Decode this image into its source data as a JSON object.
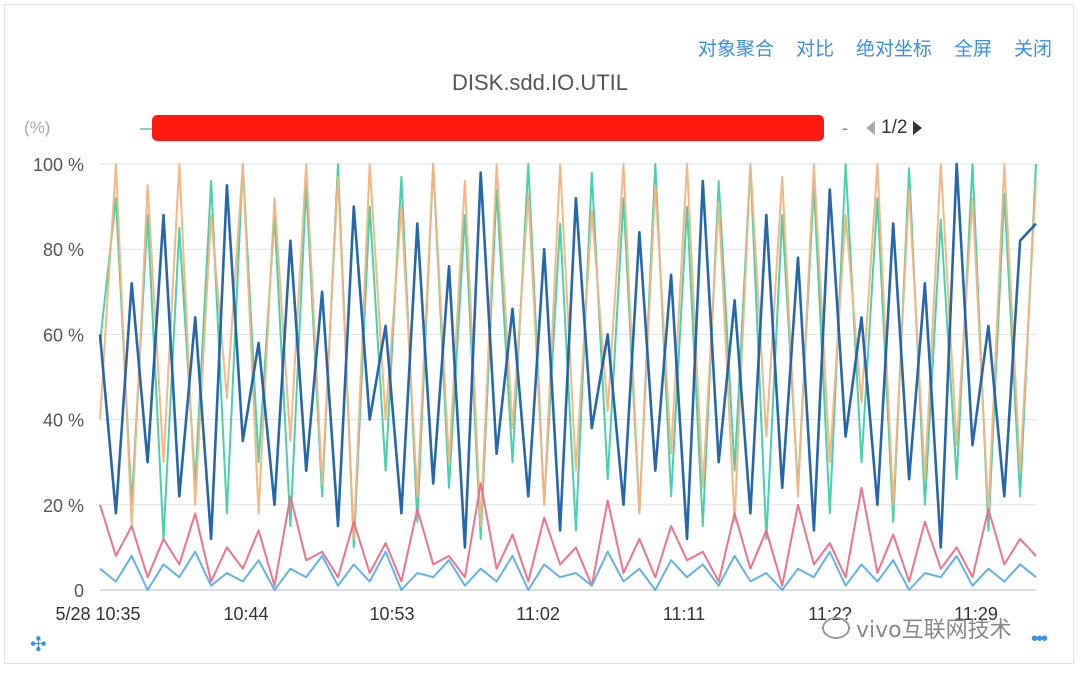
{
  "toolbar": {
    "aggregate": "对象聚合",
    "compare": "对比",
    "absolute_axis": "绝对坐标",
    "fullscreen": "全屏",
    "close": "关闭"
  },
  "legend": {
    "dash": "-",
    "page": "1/2"
  },
  "watermark": "vivo互联网技术",
  "colors": {
    "accent": "#3a8ee6",
    "series": [
      "#3ecfa6",
      "#f8b27e",
      "#1a5fa8",
      "#f06a84",
      "#5aaeee"
    ],
    "redaction": "#ff1a10"
  },
  "icons": {
    "move": "move-icon",
    "more": "more-icon"
  },
  "chart_data": {
    "type": "line",
    "title": "DISK.sdd.IO.UTIL",
    "ylabel": "(%)",
    "ylim": [
      0,
      100
    ],
    "y_ticks": [
      "0",
      "20 %",
      "40 %",
      "60 %",
      "80 %",
      "100 %"
    ],
    "x_ticks": [
      "5/28 10:35",
      "10:44",
      "10:53",
      "11:02",
      "11:11",
      "11:2?",
      "11:29"
    ],
    "grid": true,
    "series": [
      {
        "color": "#3ecfa6",
        "values": [
          58,
          92,
          20,
          88,
          12,
          85,
          25,
          96,
          18,
          100,
          30,
          88,
          15,
          95,
          22,
          100,
          10,
          90,
          28,
          97,
          16,
          100,
          24,
          88,
          12,
          94,
          30,
          100,
          20,
          86,
          14,
          98,
          26,
          92,
          18,
          100,
          22,
          90,
          15,
          96,
          28,
          100,
          12,
          88,
          24,
          95,
          18,
          100,
          30,
          92,
          16,
          99,
          20,
          87,
          26,
          100,
          14,
          93,
          22,
          100
        ]
      },
      {
        "color": "#f8b27e",
        "values": [
          40,
          100,
          15,
          95,
          30,
          100,
          20,
          88,
          45,
          100,
          18,
          92,
          35,
          100,
          25,
          97,
          12,
          100,
          40,
          90,
          22,
          100,
          30,
          96,
          15,
          100,
          38,
          93,
          20,
          100,
          28,
          89,
          42,
          100,
          18,
          95,
          32,
          100,
          24,
          91,
          16,
          100,
          36,
          97,
          22,
          100,
          30,
          88,
          44,
          100,
          20,
          94,
          26,
          100,
          34,
          92,
          18,
          100,
          28,
          96
        ]
      },
      {
        "color": "#1a5fa8",
        "values": [
          60,
          18,
          72,
          30,
          88,
          22,
          64,
          12,
          95,
          35,
          58,
          20,
          82,
          28,
          70,
          15,
          90,
          40,
          62,
          18,
          86,
          25,
          76,
          10,
          98,
          32,
          66,
          22,
          80,
          14,
          92,
          38,
          60,
          20,
          84,
          28,
          74,
          12,
          96,
          30,
          68,
          18,
          88,
          24,
          78,
          14,
          94,
          36,
          64,
          20,
          86,
          26,
          72,
          10,
          100,
          34,
          62,
          22,
          82,
          86
        ]
      },
      {
        "color": "#f06a84",
        "values": [
          20,
          8,
          15,
          3,
          12,
          6,
          18,
          2,
          10,
          5,
          14,
          1,
          22,
          7,
          9,
          3,
          16,
          4,
          11,
          2,
          19,
          6,
          8,
          3,
          25,
          5,
          13,
          2,
          17,
          6,
          10,
          1,
          21,
          4,
          12,
          3,
          15,
          7,
          9,
          2,
          18,
          5,
          14,
          1,
          20,
          6,
          11,
          3,
          24,
          4,
          13,
          2,
          16,
          5,
          10,
          3,
          19,
          6,
          12,
          8
        ]
      },
      {
        "color": "#5aaeee",
        "values": [
          5,
          2,
          8,
          0,
          6,
          3,
          9,
          1,
          4,
          2,
          7,
          0,
          5,
          3,
          8,
          1,
          6,
          2,
          9,
          0,
          4,
          3,
          7,
          1,
          5,
          2,
          8,
          0,
          6,
          3,
          4,
          1,
          9,
          2,
          5,
          0,
          7,
          3,
          6,
          1,
          8,
          2,
          4,
          0,
          5,
          3,
          9,
          1,
          6,
          2,
          7,
          0,
          4,
          3,
          8,
          1,
          5,
          2,
          6,
          3
        ]
      }
    ]
  }
}
